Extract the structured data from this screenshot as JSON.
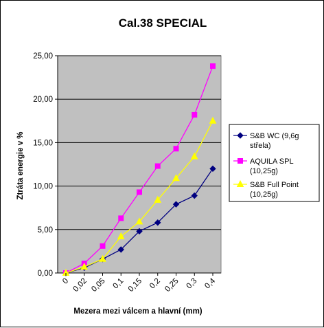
{
  "chart_data": {
    "type": "line",
    "title": "Cal.38 SPECIAL",
    "xlabel": "Mezera mezi válcem a hlavní (mm)",
    "ylabel": "Ztráta energie v %",
    "categories": [
      "0",
      "0,02",
      "0,05",
      "0,1",
      "0,15",
      "0,2",
      "0,25",
      "0,3",
      "0,4"
    ],
    "ylim": [
      0,
      25
    ],
    "y_ticks": [
      "0,00",
      "5,00",
      "10,00",
      "15,00",
      "20,00",
      "25,00"
    ],
    "grid": "horizontal",
    "legend_position": "right",
    "series": [
      {
        "name_lines": [
          "S&B   WC (9,6g",
          "střela)"
        ],
        "name": "S&B   WC (9,6g střela)",
        "color": "#000080",
        "marker": "diamond",
        "values": [
          0.0,
          0.6,
          1.6,
          2.7,
          4.8,
          5.8,
          7.9,
          8.9,
          12.0
        ]
      },
      {
        "name_lines": [
          "AQUILA SPL",
          "(10,25g)"
        ],
        "name": "AQUILA SPL (10,25g)",
        "color": "#ff00ff",
        "marker": "square",
        "values": [
          0.0,
          1.1,
          3.1,
          6.3,
          9.3,
          12.3,
          14.3,
          18.2,
          23.8
        ]
      },
      {
        "name_lines": [
          "S&B  Full Point",
          "(10,25g)"
        ],
        "name": "S&B  Full Point (10,25g)",
        "color": "#ffff00",
        "marker": "triangle",
        "values": [
          0.0,
          0.7,
          1.6,
          4.2,
          5.9,
          8.4,
          10.9,
          13.4,
          17.5
        ]
      }
    ]
  }
}
